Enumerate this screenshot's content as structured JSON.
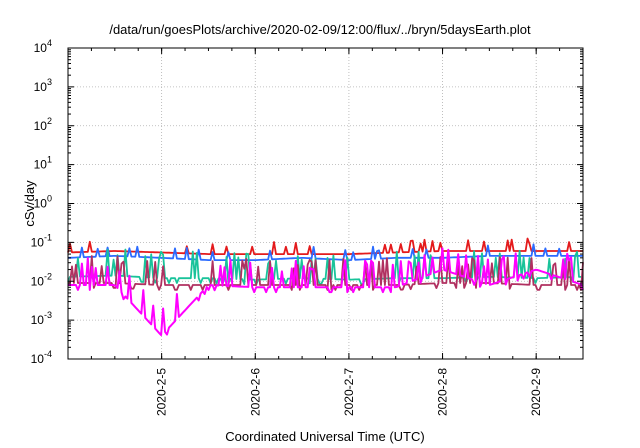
{
  "chart_data": {
    "type": "line",
    "title": "/data/run/goesPlots/archive/2020-02-09/12:00/flux/../bryn/5daysEarth.plot",
    "xlabel": "Coordinated Universal Time (UTC)",
    "ylabel": "cSv/day",
    "yscale": "log",
    "ylim": [
      0.0001,
      10000
    ],
    "xlim": [
      "2020-02-04 00:00",
      "2020-02-09 12:00"
    ],
    "grid": true,
    "legend": "none",
    "x_ticks": [
      "2020-2-5",
      "2020-2-6",
      "2020-2-7",
      "2020-2-8",
      "2020-2-9"
    ],
    "y_ticks": [
      {
        "base": "10",
        "exp": "-4"
      },
      {
        "base": "10",
        "exp": "-3"
      },
      {
        "base": "10",
        "exp": "-2"
      },
      {
        "base": "10",
        "exp": "-1"
      },
      {
        "base": "10",
        "exp": "0"
      },
      {
        "base": "10",
        "exp": "1"
      },
      {
        "base": "10",
        "exp": "2"
      },
      {
        "base": "10",
        "exp": "3"
      },
      {
        "base": "10",
        "exp": "4"
      }
    ],
    "x": [
      "2020-02-04 00:00",
      "2020-02-04 12:00",
      "2020-02-05 00:00",
      "2020-02-05 12:00",
      "2020-02-06 00:00",
      "2020-02-06 12:00",
      "2020-02-07 00:00",
      "2020-02-07 12:00",
      "2020-02-08 00:00",
      "2020-02-08 12:00",
      "2020-02-09 00:00",
      "2020-02-09 12:00"
    ],
    "series": [
      {
        "color": "#e41a1c",
        "values": [
          0.055,
          0.06,
          0.055,
          0.05,
          0.05,
          0.05,
          0.05,
          0.055,
          0.06,
          0.06,
          0.06,
          0.06
        ]
      },
      {
        "color": "#2b6bff",
        "values": [
          0.04,
          0.045,
          0.04,
          0.035,
          0.035,
          0.04,
          0.035,
          0.04,
          0.04,
          0.045,
          0.045,
          0.045
        ]
      },
      {
        "color": "#19c39a",
        "values": [
          0.013,
          0.014,
          0.012,
          0.012,
          0.011,
          0.012,
          0.011,
          0.012,
          0.012,
          0.013,
          0.012,
          0.013
        ]
      },
      {
        "color": "#b03060",
        "values": [
          0.009,
          0.009,
          0.008,
          0.008,
          0.008,
          0.008,
          0.008,
          0.008,
          0.009,
          0.009,
          0.008,
          0.008
        ]
      },
      {
        "color": "#ff00ff",
        "values": [
          0.008,
          0.008,
          0.0004,
          0.008,
          0.007,
          0.007,
          0.007,
          0.007,
          0.02,
          0.008,
          0.02,
          0.008
        ]
      }
    ]
  }
}
